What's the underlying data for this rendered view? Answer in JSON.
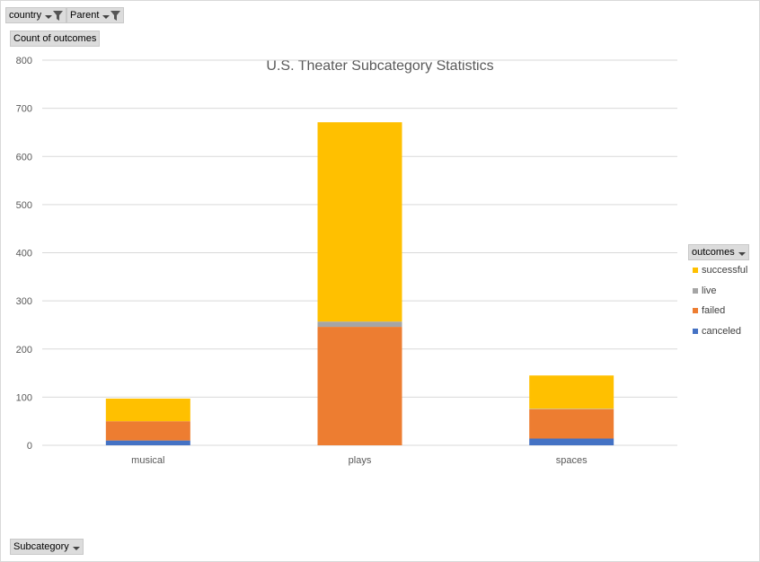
{
  "filters": {
    "country_label": "country",
    "parent_label": "Parent",
    "values_label": "Count of outcomes",
    "axis_field_label": "Subcategory",
    "legend_field_label": "outcomes"
  },
  "colors": {
    "successful": "#ffc000",
    "live": "#a5a5a5",
    "failed": "#ed7d31",
    "canceled": "#4472c4",
    "gridline": "#d9d9d9"
  },
  "chart_data": {
    "type": "bar",
    "stacked": true,
    "title": "U.S. Theater Subcategory Statistics",
    "xlabel": "",
    "ylabel": "",
    "ylim": [
      0,
      800
    ],
    "yticks": [
      "0",
      "100",
      "200",
      "300",
      "400",
      "500",
      "600",
      "700",
      "800"
    ],
    "categories": [
      "musical",
      "plays",
      "spaces"
    ],
    "series": [
      {
        "name": "canceled",
        "values": [
          10,
          0,
          14
        ]
      },
      {
        "name": "failed",
        "values": [
          40,
          246,
          61
        ]
      },
      {
        "name": "live",
        "values": [
          0,
          11,
          1
        ]
      },
      {
        "name": "successful",
        "values": [
          47,
          414,
          69
        ]
      }
    ],
    "legend_order": [
      "successful",
      "live",
      "failed",
      "canceled"
    ],
    "grid": true,
    "legend_position": "right"
  }
}
